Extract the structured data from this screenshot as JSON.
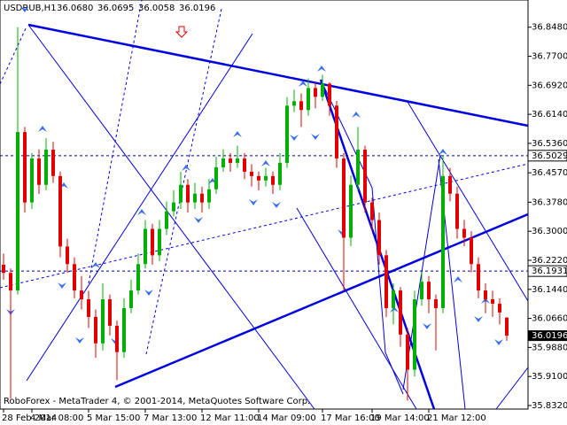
{
  "chart_data": {
    "type": "candlestick",
    "header": {
      "symbol": "USDRUB,H1",
      "open": "36.0680",
      "high": "36.0695",
      "low": "36.0058",
      "close": "36.0196"
    },
    "footer": "RoboForex - MetaTrader 4, © 2001-2014, MetaQuotes Software Corp.",
    "up_color": "#00b000",
    "down_color": "#e00000",
    "ylim": [
      35.8225,
      36.921
    ],
    "yticks": [
      {
        "value": 36.848,
        "label": "36.8480"
      },
      {
        "value": 36.77,
        "label": "36.7700"
      },
      {
        "value": 36.692,
        "label": "36.6920"
      },
      {
        "value": 36.614,
        "label": "36.6140"
      },
      {
        "value": 36.536,
        "label": "36.5360"
      },
      {
        "value": 36.457,
        "label": "36.4570"
      },
      {
        "value": 36.378,
        "label": "36.3780"
      },
      {
        "value": 36.3,
        "label": "36.3000"
      },
      {
        "value": 36.222,
        "label": "36.2220"
      },
      {
        "value": 36.144,
        "label": "36.1440"
      },
      {
        "value": 36.066,
        "label": "36.0660"
      },
      {
        "value": 35.988,
        "label": "35.9880"
      },
      {
        "value": 35.91,
        "label": "35.9100"
      },
      {
        "value": 35.832,
        "label": "35.8320"
      }
    ],
    "levels": [
      {
        "value": 36.5029,
        "label": "36.5029"
      },
      {
        "value": 36.1931,
        "label": "36.1931"
      }
    ],
    "current_price": {
      "value": 36.0196,
      "label": "36.0196"
    },
    "categories": [
      "28 Feb 2014",
      null,
      null,
      null,
      "4 Mar 08:00",
      null,
      null,
      null,
      null,
      null,
      null,
      null,
      "5 Mar 15:00",
      null,
      null,
      null,
      null,
      null,
      null,
      null,
      "7 Mar 13:00",
      null,
      null,
      null,
      null,
      null,
      null,
      null,
      "12 Mar 11:00",
      null,
      null,
      null,
      null,
      null,
      null,
      null,
      "14 Mar 09:00",
      null,
      null,
      null,
      null,
      null,
      null,
      null,
      null,
      "17 Mar 16:00",
      null,
      null,
      null,
      null,
      null,
      null,
      "19 Mar 14:00",
      null,
      null,
      null,
      null,
      null,
      null,
      null,
      "21 Mar 12:00",
      null,
      null,
      null,
      null,
      null,
      null,
      null,
      null,
      null,
      null,
      null
    ],
    "open": [
      36.21,
      36.1882,
      36.1409,
      36.5664,
      36.3773,
      36.4955,
      36.4246,
      36.5191,
      36.4482,
      36.2591,
      36.2118,
      36.1409,
      36.1172,
      36.07,
      35.999,
      36.1172,
      36.0463,
      35.9754,
      36.0936,
      36.1409,
      36.2118,
      36.3064,
      36.2354,
      36.3064,
      36.3536,
      36.3773,
      36.4246,
      36.3773,
      36.4009,
      36.3773,
      36.4127,
      36.4718,
      36.4955,
      36.4837,
      36.4955,
      36.46,
      36.4482,
      36.4364,
      36.4482,
      36.4246,
      36.4837,
      36.6373,
      36.6491,
      36.6255,
      36.6846,
      36.661,
      36.6964,
      36.6373,
      36.4955,
      36.2827,
      36.4246,
      36.5191,
      36.3773,
      36.33,
      36.2354,
      36.0936,
      36.1409,
      36.0227,
      35.9281,
      36.1172,
      36.1645,
      36.1172,
      36.0936,
      36.4482,
      36.4009,
      36.3064,
      36.2827,
      36.2118,
      36.1409,
      36.1172,
      36.1054,
      36.068
    ],
    "high": [
      36.24,
      36.2,
      36.848,
      36.58,
      36.51,
      36.52,
      36.55,
      36.54,
      36.46,
      36.28,
      36.23,
      36.18,
      36.14,
      36.09,
      36.16,
      36.13,
      36.06,
      36.12,
      36.17,
      36.24,
      36.33,
      36.32,
      36.33,
      36.38,
      36.41,
      36.46,
      36.44,
      36.43,
      36.42,
      36.44,
      36.5,
      36.52,
      36.51,
      36.53,
      36.51,
      36.48,
      36.46,
      36.47,
      36.46,
      36.51,
      36.66,
      36.68,
      36.67,
      36.71,
      36.7,
      36.72,
      36.7,
      36.65,
      36.51,
      36.45,
      36.58,
      36.53,
      36.39,
      36.35,
      36.25,
      36.16,
      36.15,
      36.04,
      36.14,
      36.19,
      36.18,
      36.13,
      36.5029,
      36.47,
      36.42,
      36.33,
      36.3,
      36.23,
      36.16,
      36.14,
      36.12,
      36.0695
    ],
    "low": [
      36.17,
      35.85,
      36.13,
      36.35,
      36.36,
      36.4,
      36.41,
      36.43,
      36.23,
      36.19,
      36.12,
      36.09,
      36.04,
      35.96,
      35.98,
      36.02,
      35.9,
      35.96,
      36.08,
      36.13,
      36.2,
      36.21,
      36.22,
      36.29,
      36.34,
      36.36,
      36.35,
      36.36,
      36.35,
      36.36,
      36.4,
      36.46,
      36.46,
      36.47,
      36.44,
      36.42,
      36.41,
      36.42,
      36.4,
      36.41,
      36.47,
      36.62,
      36.58,
      36.61,
      36.63,
      36.65,
      36.61,
      36.47,
      36.14,
      36.26,
      36.41,
      36.35,
      36.3,
      36.21,
      36.07,
      36.05,
      35.99,
      35.845,
      35.91,
      36.1,
      36.08,
      35.98,
      36.08,
      36.38,
      36.28,
      36.26,
      36.19,
      36.12,
      36.08,
      36.07,
      36.05,
      36.0058
    ],
    "close": [
      36.1882,
      36.1409,
      36.5664,
      36.3773,
      36.4955,
      36.4246,
      36.5191,
      36.4482,
      36.2591,
      36.2118,
      36.1409,
      36.1172,
      36.07,
      35.999,
      36.1172,
      36.0463,
      35.9754,
      36.0936,
      36.1409,
      36.2118,
      36.3064,
      36.2354,
      36.3064,
      36.3536,
      36.3773,
      36.4246,
      36.3773,
      36.4009,
      36.3773,
      36.4127,
      36.4718,
      36.4955,
      36.4837,
      36.4955,
      36.46,
      36.4482,
      36.4364,
      36.4482,
      36.4246,
      36.4837,
      36.6373,
      36.6491,
      36.6255,
      36.6846,
      36.661,
      36.6964,
      36.6373,
      36.4955,
      36.2827,
      36.4246,
      36.5191,
      36.3773,
      36.33,
      36.2354,
      36.0936,
      36.1409,
      36.0227,
      35.9281,
      36.1172,
      36.1645,
      36.1172,
      36.0936,
      36.4482,
      36.4009,
      36.3064,
      36.2827,
      36.2118,
      36.1409,
      36.1172,
      36.1054,
      36.0818,
      36.0196
    ]
  }
}
